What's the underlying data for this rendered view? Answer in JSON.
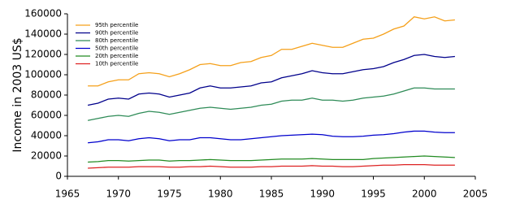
{
  "chart_data": {
    "type": "line",
    "y_label": "Income in 2003 US$",
    "x": [
      1967,
      1968,
      1969,
      1970,
      1971,
      1972,
      1973,
      1974,
      1975,
      1976,
      1977,
      1978,
      1979,
      1980,
      1981,
      1982,
      1983,
      1984,
      1985,
      1986,
      1987,
      1988,
      1989,
      1990,
      1991,
      1992,
      1993,
      1994,
      1995,
      1996,
      1997,
      1998,
      1999,
      2000,
      2001,
      2002,
      2003
    ],
    "series": [
      {
        "name": "95th percentile",
        "color": "#f5a01a",
        "values": [
          89000,
          89000,
          93000,
          95000,
          95000,
          101000,
          102000,
          101000,
          98000,
          101000,
          105000,
          110000,
          111000,
          109000,
          109000,
          112000,
          113000,
          117000,
          119000,
          125000,
          125000,
          128000,
          131000,
          129000,
          127000,
          127000,
          131000,
          135000,
          136000,
          140000,
          145000,
          148000,
          157000,
          155000,
          157000,
          153000,
          154000
        ]
      },
      {
        "name": "90th percentile",
        "color": "#00008b",
        "values": [
          70000,
          72000,
          76000,
          77000,
          76000,
          81000,
          82000,
          81000,
          78000,
          80000,
          82000,
          87000,
          89000,
          87000,
          87000,
          88000,
          89000,
          92000,
          93000,
          97000,
          99000,
          101000,
          104000,
          102000,
          101000,
          101000,
          103000,
          105000,
          106000,
          108000,
          112000,
          115000,
          119000,
          120000,
          118000,
          117000,
          118000
        ]
      },
      {
        "name": "80th percentile",
        "color": "#2e8b57",
        "values": [
          55000,
          57000,
          59000,
          60000,
          59000,
          62000,
          64000,
          63000,
          61000,
          63000,
          65000,
          67000,
          68000,
          67000,
          66000,
          67000,
          68000,
          70000,
          71000,
          74000,
          75000,
          75000,
          77000,
          75000,
          75000,
          74000,
          75000,
          77000,
          78000,
          79000,
          81000,
          84000,
          87000,
          87000,
          86000,
          86000,
          86000
        ]
      },
      {
        "name": "50th percentile",
        "color": "#0000cd",
        "values": [
          33000,
          34000,
          36000,
          36000,
          35000,
          37000,
          38000,
          37000,
          35000,
          36000,
          36000,
          38000,
          38000,
          37000,
          36000,
          36000,
          37000,
          38000,
          39000,
          40000,
          40500,
          41000,
          41500,
          41000,
          39500,
          39000,
          39000,
          39500,
          40500,
          41000,
          42000,
          43500,
          44500,
          44500,
          43500,
          43000,
          43000
        ]
      },
      {
        "name": "20th percentile",
        "color": "#228b22",
        "values": [
          14000,
          14500,
          15500,
          15500,
          15000,
          15500,
          16000,
          16000,
          15000,
          15500,
          15500,
          16000,
          16500,
          16000,
          15500,
          15500,
          15500,
          16000,
          16500,
          17000,
          17000,
          17000,
          17500,
          17000,
          16500,
          16500,
          16500,
          16500,
          17500,
          18000,
          18500,
          19000,
          19500,
          20000,
          19500,
          19000,
          18500
        ]
      },
      {
        "name": "10th percentile",
        "color": "#dd2222",
        "values": [
          8000,
          8500,
          9000,
          9000,
          9000,
          9500,
          9500,
          9500,
          9000,
          9000,
          9500,
          9500,
          10000,
          9500,
          9000,
          9000,
          9000,
          9500,
          9500,
          10000,
          10000,
          10000,
          10500,
          10000,
          10000,
          9500,
          9500,
          10000,
          10500,
          11000,
          11000,
          11500,
          11500,
          11500,
          11000,
          11000,
          11000
        ]
      }
    ],
    "xlim": [
      1965,
      2005
    ],
    "xticks": [
      1965,
      1970,
      1975,
      1980,
      1985,
      1990,
      1995,
      2000,
      2005
    ],
    "ylim": [
      0,
      160000
    ],
    "yticks": [
      0,
      20000,
      40000,
      60000,
      80000,
      100000,
      120000,
      140000,
      160000
    ],
    "grid": false,
    "legend": "upper left"
  }
}
